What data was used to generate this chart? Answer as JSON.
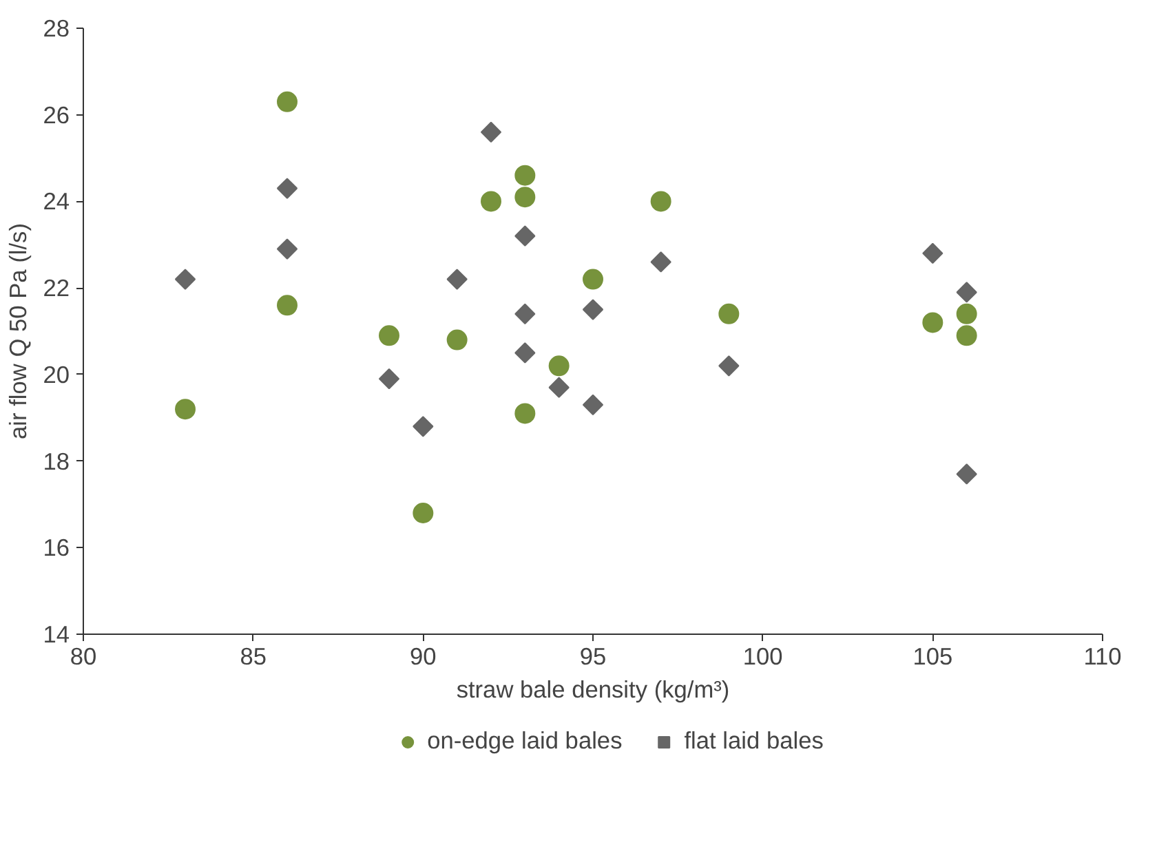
{
  "chart_data": {
    "type": "scatter",
    "xlabel": "straw bale density (kg/m³)",
    "ylabel": "air flow Q 50 Pa (l/s)",
    "xlim": [
      80,
      110
    ],
    "xticks": [
      80,
      85,
      90,
      95,
      100,
      105,
      110
    ],
    "ylim": [
      14,
      28
    ],
    "yticks": [
      14,
      16,
      18,
      20,
      22,
      24,
      26,
      28
    ],
    "grid": false,
    "legend": "bottom",
    "series": [
      {
        "name": "on-edge laid bales",
        "color": "#77933c",
        "marker": "circle",
        "x": [
          83,
          86,
          86,
          89,
          90,
          91,
          92,
          93,
          93,
          93,
          94,
          95,
          97,
          99,
          105,
          106,
          106
        ],
        "values": [
          19.2,
          26.3,
          21.6,
          20.9,
          16.8,
          20.8,
          24.0,
          24.6,
          24.1,
          19.1,
          20.2,
          22.2,
          24.0,
          21.4,
          21.2,
          21.4,
          20.9
        ]
      },
      {
        "name": "flat laid bales",
        "color": "#666666",
        "marker": "diamond",
        "x": [
          83,
          86,
          86,
          89,
          90,
          91,
          92,
          93,
          93,
          93,
          94,
          95,
          95,
          97,
          99,
          105,
          106,
          106
        ],
        "values": [
          22.2,
          24.3,
          22.9,
          19.9,
          18.8,
          22.2,
          25.6,
          23.2,
          21.4,
          20.5,
          19.7,
          21.5,
          19.3,
          22.6,
          20.2,
          22.8,
          21.9,
          17.7
        ]
      }
    ]
  }
}
